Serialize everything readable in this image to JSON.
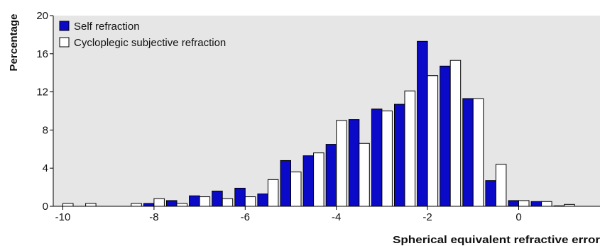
{
  "chart_data": {
    "type": "bar",
    "xlabel": "Spherical equivalent refractive error",
    "ylabel": "Percentage",
    "ylim": [
      0,
      20
    ],
    "yticks": [
      0,
      4,
      8,
      12,
      16,
      20
    ],
    "xlim": [
      -10.25,
      1.5
    ],
    "xticks": [
      -10,
      -8,
      -6,
      -4,
      -2,
      0
    ],
    "x": [
      -10,
      -9.5,
      -9,
      -8.5,
      -8,
      -7.5,
      -7,
      -6.5,
      -6,
      -5.5,
      -5,
      -4.5,
      -4,
      -3.5,
      -3,
      -2.5,
      -2,
      -1.5,
      -1,
      -0.5,
      0,
      0.5,
      1,
      1.5
    ],
    "grid": false,
    "background": "#e6e6e6",
    "legend_position": "top-left",
    "series": [
      {
        "name": "Self refraction",
        "color": "#0a0ac8",
        "values": [
          0,
          0,
          0,
          0,
          0.3,
          0.6,
          1.1,
          1.6,
          1.9,
          1.3,
          4.8,
          5.3,
          6.5,
          9.1,
          10.2,
          10.7,
          17.3,
          14.7,
          11.3,
          2.7,
          0.6,
          0.5,
          0.05,
          0
        ]
      },
      {
        "name": "Cycloplegic subjective refraction",
        "color": "#ffffff",
        "values": [
          0.3,
          0.3,
          0,
          0.3,
          0.8,
          0.3,
          1.0,
          0.8,
          1.0,
          2.8,
          3.6,
          5.6,
          9.0,
          6.6,
          10.0,
          12.1,
          13.7,
          15.3,
          11.3,
          4.4,
          0.6,
          0.5,
          0.2,
          0
        ]
      }
    ]
  }
}
